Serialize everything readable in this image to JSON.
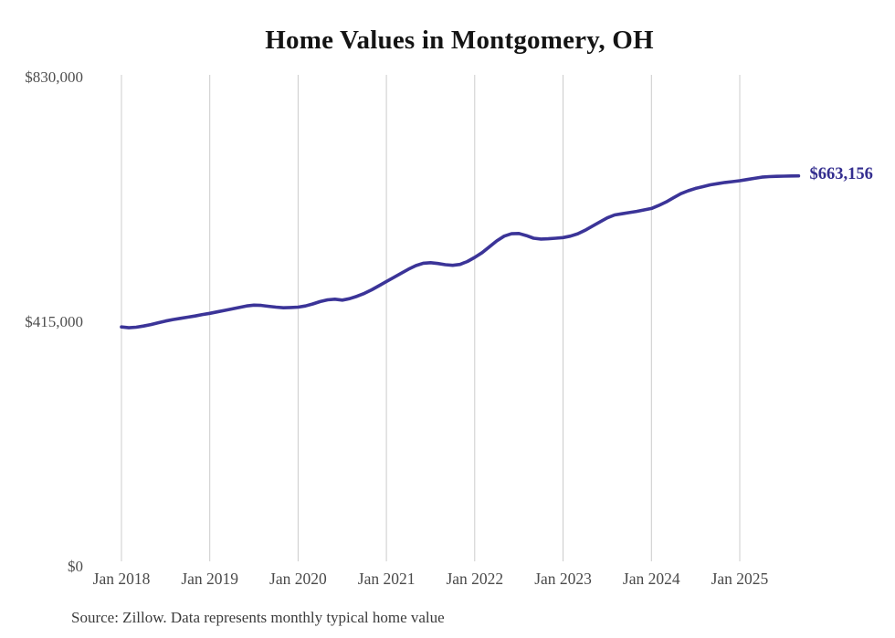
{
  "title": "Home Values in Montgomery, OH",
  "source_note": "Source: Zillow. Data represents monthly typical home value",
  "end_label": "$663,156",
  "colors": {
    "line": "#3b3498",
    "end_label": "#342e8f",
    "grid": "#cccccc",
    "tick_text": "#4e4e4e",
    "title_text": "#141414",
    "source_text": "#3c3c3c",
    "background": "#ffffff"
  },
  "y_axis": {
    "ticks": [
      {
        "label": "$830,000",
        "value": 830000
      },
      {
        "label": "$415,000",
        "value": 415000
      },
      {
        "label": "$0",
        "value": 0
      }
    ]
  },
  "x_axis": {
    "ticks": [
      "Jan 2018",
      "Jan 2019",
      "Jan 2020",
      "Jan 2021",
      "Jan 2022",
      "Jan 2023",
      "Jan 2024",
      "Jan 2025"
    ]
  },
  "chart_data": {
    "type": "line",
    "title": "Home Values in Montgomery, OH",
    "xlabel": "",
    "ylabel": "",
    "ylim": [
      0,
      830000
    ],
    "grid": "vertical-only",
    "legend": "none",
    "annotation_last_point": "$663,156",
    "x": [
      "Jan 2018",
      "Feb 2018",
      "Mar 2018",
      "Apr 2018",
      "May 2018",
      "Jun 2018",
      "Jul 2018",
      "Aug 2018",
      "Sep 2018",
      "Oct 2018",
      "Nov 2018",
      "Dec 2018",
      "Jan 2019",
      "Feb 2019",
      "Mar 2019",
      "Apr 2019",
      "May 2019",
      "Jun 2019",
      "Jul 2019",
      "Aug 2019",
      "Sep 2019",
      "Oct 2019",
      "Nov 2019",
      "Dec 2019",
      "Jan 2020",
      "Feb 2020",
      "Mar 2020",
      "Apr 2020",
      "May 2020",
      "Jun 2020",
      "Jul 2020",
      "Aug 2020",
      "Sep 2020",
      "Oct 2020",
      "Nov 2020",
      "Dec 2020",
      "Jan 2021",
      "Feb 2021",
      "Mar 2021",
      "Apr 2021",
      "May 2021",
      "Jun 2021",
      "Jul 2021",
      "Aug 2021",
      "Sep 2021",
      "Oct 2021",
      "Nov 2021",
      "Dec 2021",
      "Jan 2022",
      "Feb 2022",
      "Mar 2022",
      "Apr 2022",
      "May 2022",
      "Jun 2022",
      "Jul 2022",
      "Aug 2022",
      "Sep 2022",
      "Oct 2022",
      "Nov 2022",
      "Dec 2022",
      "Jan 2023",
      "Feb 2023",
      "Mar 2023",
      "Apr 2023",
      "May 2023",
      "Jun 2023",
      "Jul 2023",
      "Aug 2023",
      "Sep 2023",
      "Oct 2023",
      "Nov 2023",
      "Dec 2023",
      "Jan 2024",
      "Feb 2024",
      "Mar 2024",
      "Apr 2024",
      "May 2024",
      "Jun 2024",
      "Jul 2024",
      "Aug 2024",
      "Sep 2024",
      "Oct 2024",
      "Nov 2024",
      "Dec 2024",
      "Jan 2025",
      "Feb 2025",
      "Mar 2025",
      "Apr 2025",
      "May 2025",
      "Jun 2025",
      "Jul 2025",
      "Aug 2025",
      "Sep 2025"
    ],
    "values": [
      407000,
      405500,
      406500,
      408500,
      411000,
      414000,
      417000,
      419500,
      421500,
      423500,
      425500,
      428000,
      430000,
      432500,
      435000,
      437500,
      440000,
      442500,
      444000,
      443500,
      442000,
      440500,
      439500,
      440000,
      440500,
      442500,
      446000,
      450000,
      453000,
      454000,
      452500,
      455000,
      459000,
      464000,
      470000,
      477000,
      484000,
      491000,
      498000,
      505000,
      511000,
      515000,
      516000,
      514500,
      512500,
      511500,
      513000,
      518000,
      525000,
      533000,
      543000,
      553000,
      561000,
      565000,
      565500,
      562000,
      557500,
      556000,
      556500,
      557500,
      558500,
      561000,
      565000,
      571000,
      578000,
      585000,
      592000,
      597000,
      599000,
      601000,
      603000,
      605500,
      608000,
      613000,
      619000,
      626000,
      633000,
      638000,
      642000,
      645000,
      648000,
      650000,
      652000,
      653500,
      655000,
      657000,
      659000,
      661000,
      662000,
      662500,
      662800,
      663000,
      663156
    ]
  }
}
